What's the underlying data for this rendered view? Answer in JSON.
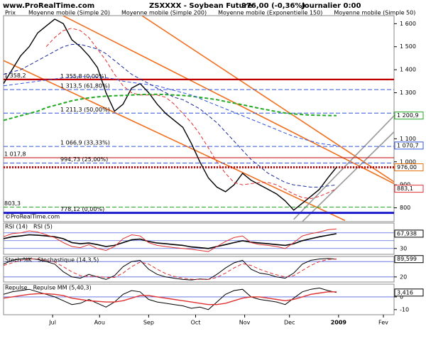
{
  "header": {
    "site": "www.ProRealTime.com",
    "instrument": "ZSXXXX - Soybean Future",
    "quote": "976,00 (-0,36%)",
    "period": "Journalier 0:00"
  },
  "footer": "©ProRealTime.com",
  "chart_data": {
    "type": "line",
    "xlim": [
      0,
      183
    ],
    "xticks": [
      {
        "value": 23,
        "label": "Jul"
      },
      {
        "value": 45,
        "label": "Aou"
      },
      {
        "value": 68,
        "label": "Sep"
      },
      {
        "value": 90,
        "label": "Oct"
      },
      {
        "value": 113,
        "label": "Nov"
      },
      {
        "value": 134,
        "label": "Dec"
      },
      {
        "value": 157,
        "label": "2009"
      },
      {
        "value": 178,
        "label": "Fev"
      }
    ],
    "x": [
      0,
      4,
      8,
      12,
      16,
      20,
      24,
      28,
      32,
      36,
      40,
      44,
      48,
      52,
      56,
      60,
      64,
      68,
      72,
      76,
      80,
      84,
      88,
      92,
      96,
      100,
      104,
      108,
      112,
      116,
      120,
      124,
      128,
      132,
      136,
      140,
      144,
      148,
      152,
      156
    ],
    "panels": [
      {
        "ylim": [
          740,
          1635
        ],
        "yticks": [
          {
            "value": 1600,
            "label": "1 600"
          },
          {
            "value": 1500,
            "label": "1 500"
          },
          {
            "value": 1400,
            "label": "1 400"
          },
          {
            "value": 1300,
            "label": "1 300"
          },
          {
            "value": 1200,
            "label": "1 200"
          },
          {
            "value": 1100,
            "label": "1 100"
          },
          {
            "value": 1000,
            "label": "1 000"
          },
          900,
          800
        ],
        "series": [
          {
            "name": "Prix",
            "color": "#000000",
            "dash": false,
            "width": 1.4,
            "last_label": "976,00",
            "label_color": "#e8700a",
            "values": [
              1340,
              1400,
              1460,
              1500,
              1560,
              1590,
              1620,
              1600,
              1530,
              1500,
              1460,
              1410,
              1300,
              1220,
              1250,
              1320,
              1340,
              1300,
              1250,
              1210,
              1180,
              1150,
              1080,
              1000,
              930,
              890,
              870,
              900,
              950,
              920,
              900,
              880,
              860,
              830,
              790,
              820,
              850,
              880,
              930,
              976
            ]
          },
          {
            "name": "Moyenne mobile (Simple 20)",
            "color": "#e03030",
            "dash": true,
            "width": 1,
            "last_label": "883,1",
            "label_color": "#e03030",
            "values": [
              null,
              null,
              null,
              null,
              null,
              1500,
              1540,
              1570,
              1580,
              1570,
              1540,
              1490,
              1440,
              1380,
              1330,
              1300,
              1290,
              1290,
              1290,
              1280,
              1250,
              1210,
              1170,
              1120,
              1060,
              1000,
              950,
              910,
              900,
              905,
              910,
              910,
              900,
              880,
              860,
              845,
              840,
              850,
              865,
              883.1
            ]
          },
          {
            "name": "Moyenne mobile (Simple 200)",
            "color": "#22aa22",
            "dash": true,
            "width": 2,
            "last_label": "1 200,9",
            "label_color": "#22aa22",
            "values": [
              1180,
              1190,
              1200,
              1210,
              1220,
              1235,
              1245,
              1255,
              1265,
              1272,
              1278,
              1282,
              1285,
              1287,
              1288,
              1290,
              1292,
              1293,
              1293,
              1292,
              1290,
              1288,
              1285,
              1280,
              1275,
              1270,
              1262,
              1255,
              1248,
              1240,
              1232,
              1225,
              1218,
              1212,
              1208,
              1205,
              1203,
              1202,
              1201,
              1200.9
            ]
          },
          {
            "name": "Moyenne mobile (Exponentielle 150)",
            "color": "#3355dd",
            "dash": true,
            "width": 1,
            "last_label": "1 070,7",
            "label_color": "#3355dd",
            "values": [
              1330,
              1335,
              1340,
              1345,
              1350,
              1355,
              1360,
              1365,
              1368,
              1370,
              1370,
              1368,
              1365,
              1360,
              1350,
              1345,
              1340,
              1335,
              1330,
              1320,
              1310,
              1300,
              1290,
              1275,
              1260,
              1245,
              1230,
              1215,
              1200,
              1185,
              1170,
              1155,
              1140,
              1125,
              1110,
              1100,
              1090,
              1080,
              1075,
              1070.7
            ]
          },
          {
            "name": "Moyenne mobile (Simple 50)",
            "color": "#1a2a9a",
            "dash": true,
            "width": 1,
            "values": [
              1380,
              1390,
              1400,
              1420,
              1440,
              1460,
              1480,
              1500,
              1510,
              1510,
              1500,
              1490,
              1470,
              1440,
              1410,
              1380,
              1360,
              1340,
              1320,
              1300,
              1280,
              1270,
              1250,
              1230,
              1200,
              1170,
              1130,
              1090,
              1050,
              1010,
              980,
              950,
              930,
              910,
              900,
              895,
              890,
              890,
              895,
              900
            ]
          }
        ],
        "levels": [
          {
            "value": 1358.2,
            "label": "1 358,2",
            "side": "left",
            "color": "#c00000",
            "style": "solid",
            "width": 2
          },
          {
            "value": 1355.8,
            "label": "1 355,8 (0,00%)",
            "side": "inner",
            "color": "#c00000",
            "style": "solid",
            "width": 1
          },
          {
            "value": 1313.5,
            "label": "1 313,5 (61,80%)",
            "side": "inner",
            "color": "#3355dd",
            "style": "dash",
            "width": 1
          },
          {
            "value": 1211.3,
            "label": "1 211,3 (50,00%)",
            "side": "inner",
            "color": "#3355dd",
            "style": "dash",
            "width": 1
          },
          {
            "value": 1066.9,
            "label": "1 066,9 (33,33%)",
            "side": "inner",
            "color": "#3355dd",
            "style": "dash",
            "width": 1
          },
          {
            "value": 1017.8,
            "label": "1 017,8",
            "side": "left",
            "color": "#c00000",
            "style": "solid",
            "width": 1
          },
          {
            "value": 994.73,
            "label": "994,73 (25,00%)",
            "side": "inner",
            "color": "#3355dd",
            "style": "dash",
            "width": 1
          },
          {
            "value": 976,
            "color": "#dd0000",
            "style": "dot",
            "width": 3
          },
          {
            "value": 803.3,
            "label": "803,3",
            "side": "left",
            "color": "#22aa22",
            "style": "dash",
            "width": 1
          },
          {
            "value": 778.12,
            "label": "778,12 (0,00%)",
            "side": "inner",
            "color": "#1a1acc",
            "style": "solid",
            "width": 3
          }
        ],
        "channels": [
          {
            "x": [
              65,
              183
            ],
            "values": [
              1634,
              913
            ],
            "color": "#f07020"
          },
          {
            "x": [
              0,
              160
            ],
            "values": [
              1440,
              745
            ],
            "color": "#f07020"
          },
          {
            "x": [
              28,
              183
            ],
            "values": [
              1634,
              905
            ],
            "color": "#f07020"
          },
          {
            "x": [
              136,
              183
            ],
            "values": [
              750,
              1200
            ],
            "color": "#999999"
          },
          {
            "x": [
              140,
              183
            ],
            "values": [
              740,
              1130
            ],
            "color": "#999999"
          }
        ]
      },
      {
        "ylim": [
          15,
          95
        ],
        "yticks": [
          30
        ],
        "hlines": [
          30,
          50,
          70
        ],
        "series": [
          {
            "name": "RSI (14)",
            "color": "#000000",
            "dash": false,
            "width": 1.6,
            "last_label": "67,938",
            "label_color": "#000000",
            "values": [
              55,
              60,
              62,
              65,
              64,
              62,
              60,
              55,
              45,
              42,
              44,
              40,
              35,
              38,
              45,
              52,
              54,
              48,
              44,
              42,
              40,
              38,
              34,
              32,
              30,
              35,
              40,
              45,
              50,
              46,
              44,
              42,
              40,
              38,
              42,
              50,
              55,
              60,
              64,
              67.938
            ]
          },
          {
            "name": "RSI (5)",
            "color": "#e03030",
            "dash": false,
            "width": 1,
            "values": [
              60,
              68,
              70,
              75,
              72,
              65,
              58,
              45,
              35,
              32,
              40,
              30,
              25,
              35,
              55,
              65,
              62,
              45,
              38,
              35,
              32,
              30,
              28,
              25,
              22,
              35,
              48,
              58,
              62,
              45,
              40,
              38,
              35,
              30,
              45,
              62,
              68,
              72,
              78,
              80
            ]
          }
        ]
      },
      {
        "ylim": [
          0,
          100
        ],
        "yticks": [
          20
        ],
        "hlines": [
          20,
          80
        ],
        "series": [
          {
            "name": "Stoch %K",
            "color": "#000000",
            "dash": false,
            "width": 1,
            "last_label": "89,599",
            "label_color": "#000000",
            "values": [
              70,
              85,
              90,
              92,
              88,
              80,
              70,
              40,
              20,
              15,
              30,
              20,
              10,
              25,
              60,
              80,
              85,
              50,
              30,
              20,
              15,
              10,
              8,
              12,
              10,
              30,
              55,
              75,
              85,
              50,
              35,
              30,
              20,
              15,
              35,
              70,
              85,
              90,
              92,
              89.599
            ]
          },
          {
            "name": "Stochastique (14,3,5)",
            "color": "#e03030",
            "dash": true,
            "width": 1,
            "values": [
              65,
              75,
              85,
              90,
              90,
              85,
              78,
              60,
              40,
              25,
              22,
              22,
              18,
              18,
              35,
              60,
              78,
              70,
              50,
              33,
              22,
              15,
              11,
              10,
              10,
              18,
              35,
              55,
              72,
              65,
              50,
              38,
              28,
              20,
              25,
              45,
              65,
              80,
              88,
              90
            ]
          }
        ]
      },
      {
        "ylim": [
          -14,
          10
        ],
        "yticks": [
          0,
          -10
        ],
        "hlines": [
          0
        ],
        "series": [
          {
            "name": "Repulse",
            "color": "#000000",
            "dash": false,
            "width": 1,
            "last_label": "3,416",
            "label_color": "#000000",
            "values": [
              2,
              4,
              5,
              6,
              4,
              2,
              0,
              -3,
              -6,
              -5,
              -2,
              -5,
              -8,
              -4,
              2,
              5,
              4,
              -2,
              -4,
              -5,
              -6,
              -7,
              -9,
              -8,
              -10,
              -4,
              2,
              5,
              6,
              0,
              -2,
              -3,
              -4,
              -6,
              -1,
              4,
              6,
              7,
              5,
              3.416
            ]
          },
          {
            "name": "Repulse MM (5,40,3)",
            "color": "#e03030",
            "dash": false,
            "width": 1.4,
            "values": [
              -1,
              0,
              1,
              2,
              2.5,
              2.5,
              2,
              1,
              -1,
              -2,
              -3,
              -3.5,
              -4,
              -4,
              -3,
              -1,
              1,
              1,
              0,
              -1,
              -2,
              -3,
              -4,
              -5,
              -6,
              -6,
              -5,
              -3,
              -1,
              0,
              0,
              -1,
              -2,
              -3,
              -2,
              0,
              2,
              3,
              4,
              4
            ]
          }
        ]
      }
    ]
  }
}
